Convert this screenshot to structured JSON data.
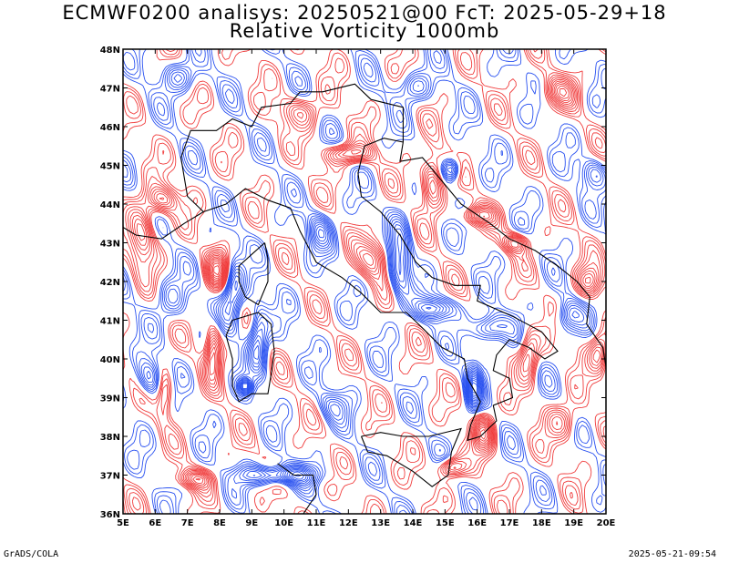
{
  "title_line1": "ECMWF0200 analisys: 20250521@00 FcT: 2025-05-29+18",
  "title_line2": "Relative Vorticity 1000mb",
  "footer_left": "GrADS/COLA",
  "footer_right": "2025-05-21-09:54",
  "map": {
    "lon_range": [
      5,
      20
    ],
    "lat_range": [
      36,
      48
    ],
    "lon_labels": [
      "5E",
      "6E",
      "7E",
      "8E",
      "9E",
      "10E",
      "11E",
      "12E",
      "13E",
      "14E",
      "15E",
      "16E",
      "17E",
      "18E",
      "19E",
      "20E"
    ],
    "lat_labels": [
      "36N",
      "37N",
      "38N",
      "39N",
      "40N",
      "41N",
      "42N",
      "43N",
      "44N",
      "45N",
      "46N",
      "47N",
      "48N"
    ],
    "colors": {
      "positive": "#f03c3c",
      "negative": "#2850f0",
      "coast": "#000000",
      "frame": "#000000"
    }
  }
}
